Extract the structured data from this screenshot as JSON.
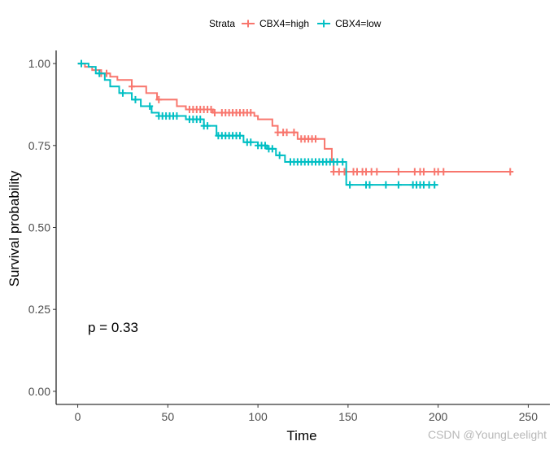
{
  "chart_data": {
    "type": "line",
    "subtype": "kaplan-meier",
    "xlabel": "Time",
    "ylabel": "Survival probability",
    "xlim": [
      -12,
      262
    ],
    "ylim": [
      -0.04,
      1.04
    ],
    "x_ticks": [
      0,
      50,
      100,
      150,
      200,
      250
    ],
    "y_ticks": [
      0.0,
      0.25,
      0.5,
      0.75,
      1.0
    ],
    "y_tick_labels": [
      "0.00",
      "0.25",
      "0.50",
      "0.75",
      "1.00"
    ],
    "grid": false,
    "legend": {
      "title": "Strata",
      "position": "top"
    },
    "annotation": "p = 0.33",
    "series": [
      {
        "name": "CBX4=high",
        "color": "#F8766D",
        "steps": [
          [
            0,
            1.0
          ],
          [
            4,
            0.99
          ],
          [
            8,
            0.98
          ],
          [
            13,
            0.97
          ],
          [
            18,
            0.96
          ],
          [
            22,
            0.95
          ],
          [
            30,
            0.93
          ],
          [
            38,
            0.91
          ],
          [
            44,
            0.89
          ],
          [
            55,
            0.87
          ],
          [
            60,
            0.86
          ],
          [
            75,
            0.85
          ],
          [
            98,
            0.84
          ],
          [
            100,
            0.83
          ],
          [
            108,
            0.81
          ],
          [
            111,
            0.79
          ],
          [
            122,
            0.77
          ],
          [
            137,
            0.74
          ],
          [
            141,
            0.7
          ],
          [
            142,
            0.67
          ],
          [
            240,
            0.67
          ]
        ],
        "censor_x": [
          13,
          16,
          30,
          45,
          62,
          64,
          66,
          68,
          70,
          72,
          74,
          76,
          80,
          82,
          84,
          86,
          88,
          90,
          92,
          94,
          96,
          111,
          114,
          116,
          120,
          124,
          126,
          128,
          130,
          132,
          142,
          145,
          148,
          153,
          155,
          158,
          160,
          163,
          166,
          178,
          187,
          190,
          192,
          198,
          200,
          203,
          240
        ]
      },
      {
        "name": "CBX4=low",
        "color": "#00BFC4",
        "steps": [
          [
            0,
            1.0
          ],
          [
            6,
            0.99
          ],
          [
            10,
            0.97
          ],
          [
            15,
            0.95
          ],
          [
            18,
            0.93
          ],
          [
            23,
            0.91
          ],
          [
            30,
            0.89
          ],
          [
            35,
            0.87
          ],
          [
            41,
            0.85
          ],
          [
            45,
            0.84
          ],
          [
            60,
            0.83
          ],
          [
            70,
            0.81
          ],
          [
            77,
            0.78
          ],
          [
            92,
            0.76
          ],
          [
            100,
            0.75
          ],
          [
            105,
            0.74
          ],
          [
            110,
            0.72
          ],
          [
            115,
            0.7
          ],
          [
            148,
            0.7
          ],
          [
            149,
            0.63
          ],
          [
            200,
            0.63
          ]
        ],
        "censor_x": [
          2,
          12,
          25,
          32,
          40,
          45,
          47,
          49,
          51,
          53,
          55,
          62,
          64,
          66,
          68,
          70,
          72,
          78,
          80,
          82,
          84,
          86,
          88,
          90,
          94,
          96,
          100,
          102,
          104,
          106,
          108,
          112,
          118,
          120,
          122,
          124,
          126,
          128,
          130,
          132,
          134,
          136,
          138,
          140,
          142,
          144,
          147,
          151,
          160,
          162,
          171,
          178,
          186,
          188,
          190,
          192,
          195,
          198
        ]
      }
    ]
  },
  "watermark": "CSDN @YoungLeelight"
}
